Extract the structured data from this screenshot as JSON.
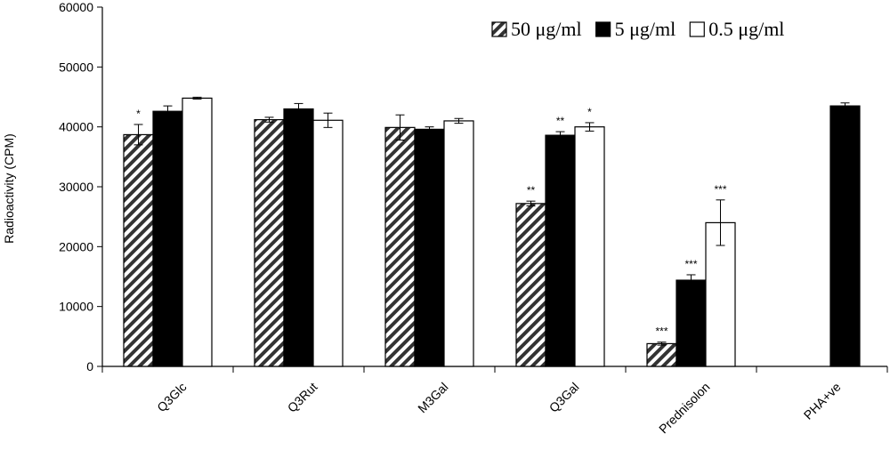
{
  "chart_data": {
    "type": "bar",
    "ylabel": "Radioactivity (CPM)",
    "xlabel": "",
    "ylim": [
      0,
      60000
    ],
    "yticks": [
      0,
      10000,
      20000,
      30000,
      40000,
      50000,
      60000
    ],
    "grid": false,
    "legend_position": "top-right",
    "categories": [
      "Q3Glc",
      "Q3Rut",
      "M3Gal",
      "Q3Gal",
      "Prednisolon",
      "PHA+ve"
    ],
    "series": [
      {
        "name": "50 μg/ml",
        "fill": "hatched",
        "values": [
          38700,
          41200,
          39900,
          27200,
          3800,
          null
        ],
        "errors": [
          1700,
          400,
          2100,
          400,
          250,
          null
        ],
        "significance": [
          "*",
          "",
          "",
          "**",
          "***",
          ""
        ]
      },
      {
        "name": "5 μg/ml",
        "fill": "#000000",
        "values": [
          42600,
          43000,
          39600,
          38600,
          14400,
          43500
        ],
        "errors": [
          900,
          900,
          400,
          600,
          900,
          500
        ],
        "significance": [
          "",
          "",
          "",
          "**",
          "***",
          ""
        ]
      },
      {
        "name": "0.5 μg/ml",
        "fill": "#ffffff",
        "values": [
          44800,
          41100,
          41000,
          40000,
          24000,
          null
        ],
        "errors": [
          150,
          1200,
          400,
          700,
          3800,
          null
        ],
        "significance": [
          "",
          "",
          "",
          "*",
          "***",
          ""
        ]
      }
    ]
  }
}
